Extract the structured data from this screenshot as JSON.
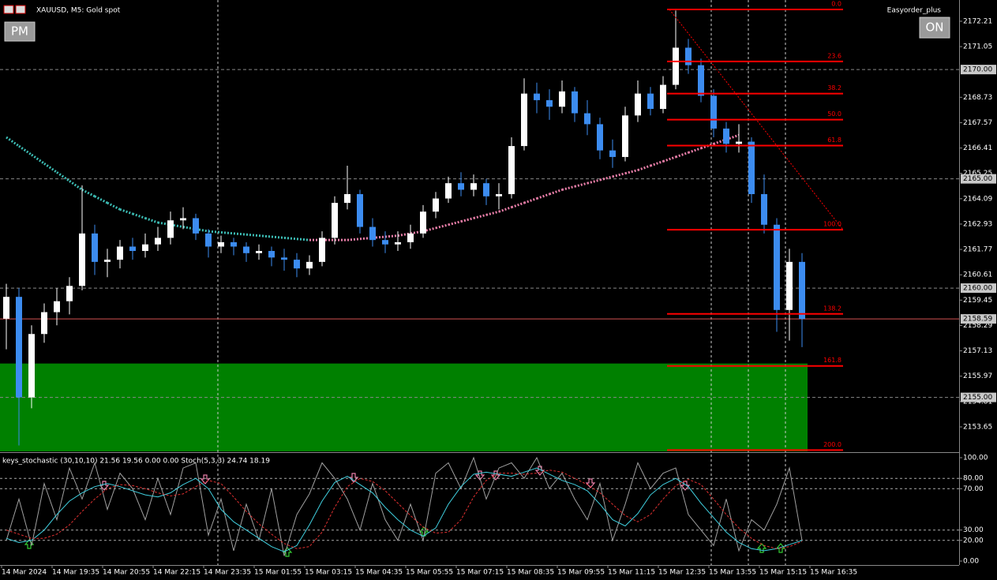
{
  "header": {
    "symbol": "XAUUSD, M5:  Gold spot",
    "expert": "Easyorder_plus"
  },
  "buttons": {
    "left": "PM",
    "right": "ON"
  },
  "chart_data": [
    {
      "type": "candlestick",
      "ylim": [
        2152.53,
        2173.11
      ],
      "yticks": [
        2172.21,
        2171.05,
        2168.73,
        2167.57,
        2166.41,
        2165.25,
        2164.09,
        2162.93,
        2161.77,
        2160.61,
        2159.45,
        2158.29,
        2157.13,
        2155.97,
        2154.81,
        2153.65
      ],
      "levels": [
        {
          "value": 2170,
          "label": "2170.00"
        },
        {
          "value": 2165,
          "label": "2165.00"
        },
        {
          "value": 2160,
          "label": "2160.00"
        },
        {
          "value": 2155,
          "label": "2155.00"
        }
      ],
      "bid": {
        "value": 2158.59,
        "label": "2158.59"
      },
      "xticks": [
        "14 Mar 2024",
        "14 Mar 19:35",
        "14 Mar 20:55",
        "14 Mar 22:15",
        "14 Mar 23:35",
        "15 Mar 01:55",
        "15 Mar 03:15",
        "15 Mar 04:35",
        "15 Mar 05:55",
        "15 Mar 07:15",
        "15 Mar 08:35",
        "15 Mar 09:55",
        "15 Mar 11:15",
        "15 Mar 12:35",
        "15 Mar 13:55",
        "15 Mar 15:15",
        "15 Mar 16:35"
      ],
      "up_color": "#ffffff",
      "down_color": "#3c8cf0",
      "values": [
        [
          2158.6,
          2160.2,
          2157.2,
          2159.6
        ],
        [
          2159.6,
          2160.0,
          2152.8,
          2155.0
        ],
        [
          2155.0,
          2158.3,
          2154.5,
          2157.9
        ],
        [
          2157.9,
          2159.3,
          2157.5,
          2158.9
        ],
        [
          2158.9,
          2160.0,
          2158.3,
          2159.4
        ],
        [
          2159.4,
          2160.5,
          2158.8,
          2160.1
        ],
        [
          2160.1,
          2164.7,
          2159.9,
          2162.5
        ],
        [
          2162.5,
          2162.9,
          2160.6,
          2161.2
        ],
        [
          2161.2,
          2161.8,
          2160.5,
          2161.3
        ],
        [
          2161.3,
          2162.2,
          2160.9,
          2161.9
        ],
        [
          2161.9,
          2162.3,
          2161.3,
          2161.7
        ],
        [
          2161.7,
          2162.5,
          2161.4,
          2162.0
        ],
        [
          2162.0,
          2162.8,
          2161.7,
          2162.3
        ],
        [
          2162.3,
          2163.5,
          2162.0,
          2163.1
        ],
        [
          2163.1,
          2163.7,
          2162.7,
          2163.2
        ],
        [
          2163.2,
          2163.4,
          2162.2,
          2162.5
        ],
        [
          2162.5,
          2162.7,
          2161.4,
          2161.9
        ],
        [
          2161.9,
          2162.4,
          2161.6,
          2162.1
        ],
        [
          2162.1,
          2162.3,
          2161.5,
          2161.9
        ],
        [
          2161.9,
          2162.1,
          2161.2,
          2161.6
        ],
        [
          2161.6,
          2162.0,
          2161.3,
          2161.7
        ],
        [
          2161.7,
          2161.9,
          2161.0,
          2161.4
        ],
        [
          2161.4,
          2161.8,
          2160.8,
          2161.3
        ],
        [
          2161.3,
          2161.6,
          2160.5,
          2160.9
        ],
        [
          2160.9,
          2161.5,
          2160.6,
          2161.2
        ],
        [
          2161.2,
          2162.6,
          2161.0,
          2162.3
        ],
        [
          2162.3,
          2164.2,
          2162.0,
          2163.9
        ],
        [
          2163.9,
          2165.6,
          2163.6,
          2164.3
        ],
        [
          2164.3,
          2164.5,
          2162.5,
          2162.8
        ],
        [
          2162.8,
          2163.2,
          2161.9,
          2162.2
        ],
        [
          2162.2,
          2162.6,
          2161.6,
          2162.0
        ],
        [
          2162.0,
          2162.6,
          2161.7,
          2162.1
        ],
        [
          2162.1,
          2162.9,
          2161.8,
          2162.5
        ],
        [
          2162.5,
          2163.8,
          2162.3,
          2163.5
        ],
        [
          2163.5,
          2164.4,
          2163.2,
          2164.1
        ],
        [
          2164.1,
          2165.1,
          2163.9,
          2164.8
        ],
        [
          2164.8,
          2165.3,
          2164.2,
          2164.5
        ],
        [
          2164.5,
          2165.2,
          2164.2,
          2164.8
        ],
        [
          2164.8,
          2165.0,
          2163.8,
          2164.2
        ],
        [
          2164.2,
          2164.8,
          2163.6,
          2164.3
        ],
        [
          2164.3,
          2166.9,
          2164.1,
          2166.5
        ],
        [
          2166.5,
          2169.6,
          2166.3,
          2168.9
        ],
        [
          2168.9,
          2169.4,
          2168.0,
          2168.6
        ],
        [
          2168.6,
          2169.1,
          2167.7,
          2168.3
        ],
        [
          2168.3,
          2169.5,
          2168.0,
          2169.0
        ],
        [
          2169.0,
          2169.2,
          2167.6,
          2168.0
        ],
        [
          2168.0,
          2168.6,
          2167.0,
          2167.5
        ],
        [
          2167.5,
          2167.8,
          2165.9,
          2166.3
        ],
        [
          2166.3,
          2166.8,
          2165.5,
          2166.0
        ],
        [
          2166.0,
          2168.3,
          2165.8,
          2167.9
        ],
        [
          2167.9,
          2169.5,
          2167.6,
          2168.9
        ],
        [
          2168.9,
          2169.2,
          2167.9,
          2168.2
        ],
        [
          2168.2,
          2169.7,
          2168.0,
          2169.3
        ],
        [
          2169.3,
          2172.7,
          2169.1,
          2171.0
        ],
        [
          2171.0,
          2171.4,
          2169.8,
          2170.2
        ],
        [
          2170.2,
          2170.5,
          2168.5,
          2168.8
        ],
        [
          2168.8,
          2169.1,
          2166.9,
          2167.3
        ],
        [
          2167.3,
          2167.6,
          2166.2,
          2166.6
        ],
        [
          2166.6,
          2167.5,
          2166.2,
          2166.7
        ],
        [
          2166.7,
          2166.9,
          2163.9,
          2164.3
        ],
        [
          2164.3,
          2165.2,
          2162.5,
          2162.9
        ],
        [
          2162.9,
          2163.2,
          2158.0,
          2159.0
        ],
        [
          2159.0,
          2161.8,
          2157.6,
          2161.2
        ],
        [
          2161.2,
          2161.6,
          2157.3,
          2158.59
        ]
      ],
      "ma": {
        "rise_color": "#e87ea8",
        "fall_color": "#3cbcb4",
        "values": [
          2166.9,
          2166.5,
          2166.1,
          2165.7,
          2165.3,
          2164.9,
          2164.5,
          2164.2,
          2163.9,
          2163.6,
          2163.4,
          2163.2,
          2163.0,
          2162.9,
          2162.8,
          2162.7,
          2162.6,
          2162.55,
          2162.5,
          2162.45,
          2162.4,
          2162.35,
          2162.3,
          2162.25,
          2162.2,
          2162.2,
          2162.2,
          2162.2,
          2162.25,
          2162.3,
          2162.35,
          2162.4,
          2162.5,
          2162.6,
          2162.75,
          2162.9,
          2163.05,
          2163.2,
          2163.35,
          2163.5,
          2163.7,
          2163.9,
          2164.1,
          2164.3,
          2164.5,
          2164.65,
          2164.8,
          2164.95,
          2165.1,
          2165.25,
          2165.4,
          2165.6,
          2165.8,
          2166.0,
          2166.2,
          2166.4,
          2166.6,
          2166.8,
          2167.0,
          null,
          null,
          null,
          null,
          null
        ]
      },
      "zone": {
        "color": "#008000",
        "top": 2156.55
      },
      "fibonacci": {
        "color": "#ff0000",
        "levels": [
          {
            "label": "0.0",
            "price": 2172.75
          },
          {
            "label": "23.6",
            "price": 2170.37
          },
          {
            "label": "38.2",
            "price": 2168.9
          },
          {
            "label": "50.0",
            "price": 2167.71
          },
          {
            "label": "61.8",
            "price": 2166.52
          },
          {
            "label": "100.0",
            "price": 2162.67
          },
          {
            "label": "138.2",
            "price": 2158.82
          },
          {
            "label": "161.8",
            "price": 2156.44
          },
          {
            "label": "200.0",
            "price": 2152.59
          }
        ]
      }
    },
    {
      "type": "line",
      "title": "keys_stochastic (30,10,10) 21.56 19.56 0.00 0.00 Stoch(5,3,3) 24.74 18.19",
      "ylim": [
        -3.8,
        103.8
      ],
      "yticks": [
        {
          "value": 100,
          "label": "100.00"
        },
        {
          "value": 80,
          "label": "80.00"
        },
        {
          "value": 70,
          "label": "70.00"
        },
        {
          "value": 30,
          "label": "30.00"
        },
        {
          "value": 20,
          "label": "20.00"
        },
        {
          "value": 0,
          "label": "0.00"
        }
      ],
      "series": [
        {
          "color": "#a0a0a0",
          "values": [
            20,
            60,
            15,
            75,
            40,
            90,
            60,
            95,
            50,
            85,
            70,
            40,
            80,
            45,
            90,
            95,
            25,
            60,
            10,
            55,
            20,
            70,
            5,
            45,
            65,
            95,
            80,
            60,
            30,
            75,
            40,
            20,
            55,
            20,
            85,
            95,
            70,
            100,
            60,
            90,
            95,
            80,
            100,
            70,
            85,
            60,
            40,
            75,
            20,
            55,
            95,
            70,
            85,
            90,
            45,
            30,
            15,
            60,
            10,
            40,
            30,
            55,
            90,
            20
          ]
        },
        {
          "color": "#40d0e0",
          "values": [
            22,
            18,
            20,
            30,
            45,
            58,
            66,
            72,
            75,
            72,
            68,
            64,
            62,
            66,
            74,
            80,
            70,
            50,
            38,
            30,
            22,
            14,
            9,
            15,
            35,
            58,
            76,
            82,
            74,
            66,
            52,
            40,
            30,
            24,
            32,
            55,
            72,
            84,
            86,
            84,
            82,
            86,
            90,
            84,
            78,
            74,
            68,
            55,
            40,
            34,
            46,
            64,
            74,
            80,
            72,
            56,
            42,
            28,
            18,
            12,
            10,
            12,
            16,
            20
          ]
        },
        {
          "color": "#e03030",
          "dashed": true,
          "values": [
            30,
            26,
            22,
            22,
            26,
            35,
            48,
            60,
            70,
            74,
            73,
            70,
            66,
            63,
            65,
            72,
            78,
            75,
            62,
            48,
            36,
            26,
            17,
            12,
            14,
            28,
            52,
            72,
            80,
            77,
            68,
            56,
            44,
            33,
            27,
            28,
            40,
            62,
            78,
            85,
            85,
            84,
            85,
            88,
            86,
            80,
            74,
            66,
            55,
            44,
            38,
            45,
            60,
            73,
            79,
            74,
            60,
            45,
            32,
            22,
            15,
            12,
            14,
            19
          ]
        }
      ]
    }
  ]
}
